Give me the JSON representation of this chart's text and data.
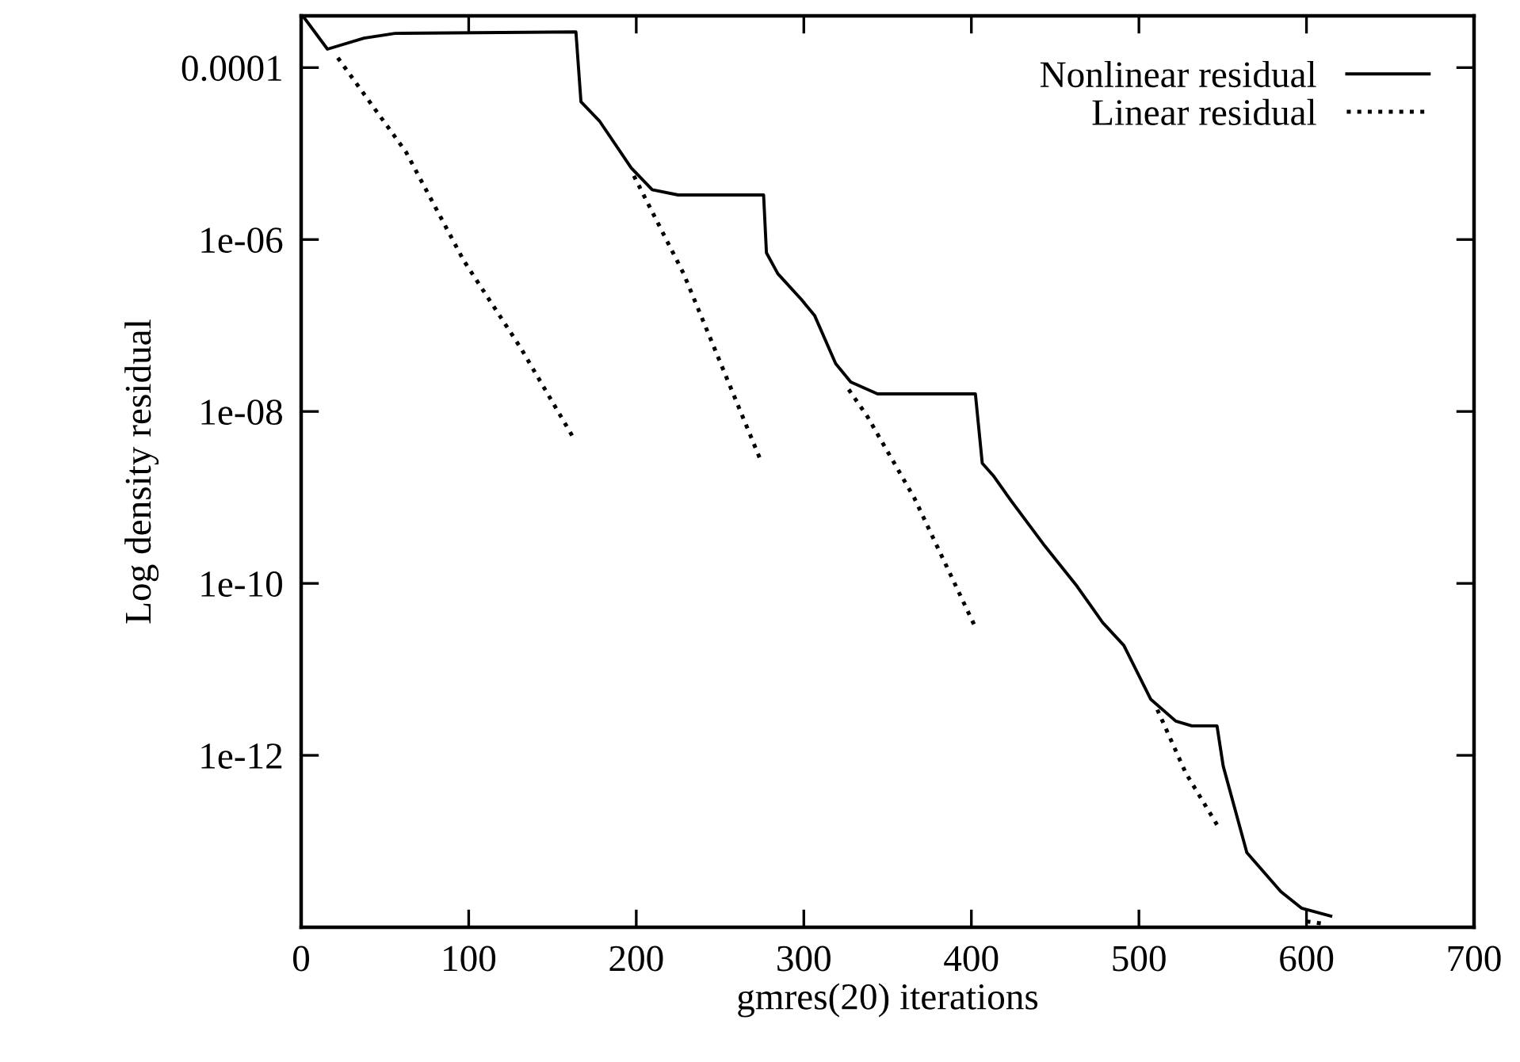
{
  "chart_data": {
    "type": "line",
    "xlabel": "gmres(20) iterations",
    "ylabel": "Log density residual",
    "log": "y",
    "grid": false,
    "legend": "top right",
    "xlim": [
      0,
      700
    ],
    "xticks": [
      0,
      100,
      200,
      300,
      400,
      500,
      600,
      700
    ],
    "ylim": [
      1e-14,
      0.0004
    ],
    "yticks": [
      {
        "value": 0.0001,
        "label": "0.0001"
      },
      {
        "value": 1e-06,
        "label": "1e-06"
      },
      {
        "value": 1e-08,
        "label": "1e-08"
      },
      {
        "value": 1e-10,
        "label": "1e-10"
      },
      {
        "value": 1e-12,
        "label": "1e-12"
      }
    ],
    "series": [
      {
        "name": "Nonlinear residual",
        "color": "#000000",
        "line_style": "solid",
        "x": [
          1,
          15.7,
          37.5,
          56,
          164,
          167,
          178,
          197,
          209.5,
          225,
          276,
          277.7,
          284.5,
          298.6,
          306.5,
          319,
          328,
          344,
          402.4,
          406.5,
          413,
          424,
          444,
          463,
          478.4,
          491,
          507,
          522,
          531.6,
          546.6,
          550.3,
          564.4,
          584.7,
          597,
          614.5
        ],
        "values": [
          0.0004,
          0.000164,
          0.00022,
          0.00025,
          0.00026,
          4e-05,
          2.4e-05,
          6.8e-06,
          3.8e-06,
          3.3e-06,
          3.3e-06,
          7e-07,
          4e-07,
          2e-07,
          1.3e-07,
          3.6e-08,
          2.2e-08,
          1.6e-08,
          1.6e-08,
          2.5e-09,
          1.8e-09,
          9e-10,
          2.7e-10,
          9.3e-11,
          3.5e-11,
          1.9e-11,
          4.5e-12,
          2.5e-12,
          2.2e-12,
          2.2e-12,
          7.5e-13,
          7.4e-14,
          2.6e-14,
          1.67e-14,
          1.35e-14
        ]
      },
      {
        "name": "Linear residual",
        "color": "#000000",
        "line_style": "dotted",
        "x": [
          21.9,
          62.6,
          97,
          131,
          162.6,
          180,
          198.6,
          228.3,
          273.6,
          300,
          326.8,
          338,
          366,
          402,
          450,
          511,
          528,
          546.6,
          570,
          600,
          610
        ],
        "values": [
          0.00013,
          1.04e-05,
          5.7e-07,
          5.5e-08,
          4.9e-09,
          null,
          5.5e-06,
          4e-07,
          2.9e-09,
          null,
          1.8e-08,
          8.7e-09,
          9.8e-10,
          3.2e-11,
          null,
          3.4e-12,
          6.2e-13,
          1.56e-13,
          null,
          1.17e-14,
          1.1e-14
        ]
      }
    ]
  }
}
